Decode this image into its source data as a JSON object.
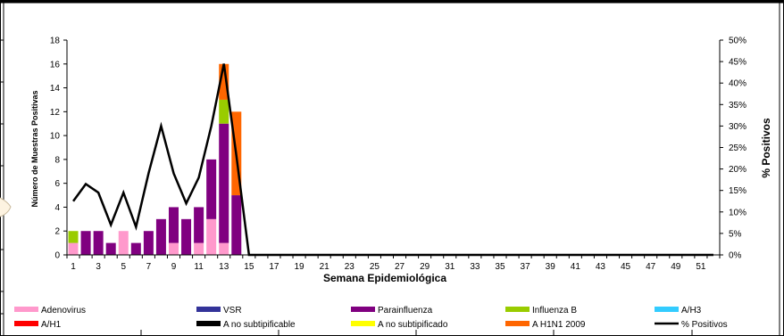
{
  "chart_data": {
    "type": "bar",
    "title": "",
    "xlabel": "Semana Epidemiológica",
    "ylabel": "Número de Muestras Positivas",
    "y2label": "% Positivos",
    "ylim": [
      0,
      18
    ],
    "y2lim": [
      0,
      0.5
    ],
    "yticks": [
      "0",
      "2",
      "4",
      "6",
      "8",
      "10",
      "12",
      "14",
      "16",
      "18"
    ],
    "y2ticks": [
      "0%",
      "5%",
      "10%",
      "15%",
      "20%",
      "25%",
      "30%",
      "35%",
      "40%",
      "45%",
      "50%"
    ],
    "x": [
      1,
      2,
      3,
      4,
      5,
      6,
      7,
      8,
      9,
      10,
      11,
      12,
      13,
      14,
      15,
      16,
      17,
      18,
      19,
      20,
      21,
      22,
      23,
      24,
      25,
      26,
      27,
      28,
      29,
      30,
      31,
      32,
      33,
      34,
      35,
      36,
      37,
      38,
      39,
      40,
      41,
      42,
      43,
      44,
      45,
      46,
      47,
      48,
      49,
      50,
      51,
      52
    ],
    "xtick_labels": [
      "1",
      "3",
      "5",
      "7",
      "9",
      "11",
      "13",
      "15",
      "17",
      "19",
      "21",
      "23",
      "25",
      "27",
      "29",
      "31",
      "33",
      "35",
      "37",
      "39",
      "41",
      "43",
      "45",
      "47",
      "49",
      "51"
    ],
    "series": [
      {
        "name": "Adenovirus",
        "color": "#ff99cc",
        "kind": "bar",
        "values": [
          1,
          0,
          0,
          0,
          2,
          0,
          0,
          0,
          1,
          0,
          1,
          3,
          1,
          0,
          0,
          0,
          0,
          0,
          0,
          0,
          0,
          0,
          0,
          0,
          0,
          0,
          0,
          0,
          0,
          0,
          0,
          0,
          0,
          0,
          0,
          0,
          0,
          0,
          0,
          0,
          0,
          0,
          0,
          0,
          0,
          0,
          0,
          0,
          0,
          0,
          0,
          0
        ]
      },
      {
        "name": "VSR",
        "color": "#333399",
        "kind": "bar",
        "values": [
          0,
          0,
          0,
          0,
          0,
          0,
          0,
          0,
          0,
          0,
          0,
          0,
          0,
          0,
          0,
          0,
          0,
          0,
          0,
          0,
          0,
          0,
          0,
          0,
          0,
          0,
          0,
          0,
          0,
          0,
          0,
          0,
          0,
          0,
          0,
          0,
          0,
          0,
          0,
          0,
          0,
          0,
          0,
          0,
          0,
          0,
          0,
          0,
          0,
          0,
          0,
          0
        ]
      },
      {
        "name": "Parainfluenza",
        "color": "#800080",
        "kind": "bar",
        "values": [
          0,
          2,
          2,
          1,
          0,
          1,
          2,
          3,
          3,
          3,
          3,
          5,
          10,
          5,
          0,
          0,
          0,
          0,
          0,
          0,
          0,
          0,
          0,
          0,
          0,
          0,
          0,
          0,
          0,
          0,
          0,
          0,
          0,
          0,
          0,
          0,
          0,
          0,
          0,
          0,
          0,
          0,
          0,
          0,
          0,
          0,
          0,
          0,
          0,
          0,
          0,
          0
        ]
      },
      {
        "name": "Influenza  B",
        "color": "#99cc00",
        "kind": "bar",
        "values": [
          1,
          0,
          0,
          0,
          0,
          0,
          0,
          0,
          0,
          0,
          0,
          0,
          2,
          0,
          0,
          0,
          0,
          0,
          0,
          0,
          0,
          0,
          0,
          0,
          0,
          0,
          0,
          0,
          0,
          0,
          0,
          0,
          0,
          0,
          0,
          0,
          0,
          0,
          0,
          0,
          0,
          0,
          0,
          0,
          0,
          0,
          0,
          0,
          0,
          0,
          0,
          0
        ]
      },
      {
        "name": "A/H3",
        "color": "#33ccff",
        "kind": "bar",
        "values": [
          0,
          0,
          0,
          0,
          0,
          0,
          0,
          0,
          0,
          0,
          0,
          0,
          0,
          0,
          0,
          0,
          0,
          0,
          0,
          0,
          0,
          0,
          0,
          0,
          0,
          0,
          0,
          0,
          0,
          0,
          0,
          0,
          0,
          0,
          0,
          0,
          0,
          0,
          0,
          0,
          0,
          0,
          0,
          0,
          0,
          0,
          0,
          0,
          0,
          0,
          0,
          0
        ]
      },
      {
        "name": "A/H1",
        "color": "#ff0000",
        "kind": "bar",
        "values": [
          0,
          0,
          0,
          0,
          0,
          0,
          0,
          0,
          0,
          0,
          0,
          0,
          0,
          0,
          0,
          0,
          0,
          0,
          0,
          0,
          0,
          0,
          0,
          0,
          0,
          0,
          0,
          0,
          0,
          0,
          0,
          0,
          0,
          0,
          0,
          0,
          0,
          0,
          0,
          0,
          0,
          0,
          0,
          0,
          0,
          0,
          0,
          0,
          0,
          0,
          0,
          0
        ]
      },
      {
        "name": "A no subtipificable",
        "color": "#000000",
        "kind": "bar",
        "values": [
          0,
          0,
          0,
          0,
          0,
          0,
          0,
          0,
          0,
          0,
          0,
          0,
          0,
          0,
          0,
          0,
          0,
          0,
          0,
          0,
          0,
          0,
          0,
          0,
          0,
          0,
          0,
          0,
          0,
          0,
          0,
          0,
          0,
          0,
          0,
          0,
          0,
          0,
          0,
          0,
          0,
          0,
          0,
          0,
          0,
          0,
          0,
          0,
          0,
          0,
          0,
          0
        ]
      },
      {
        "name": "A no subtipificado",
        "color": "#ffff00",
        "kind": "bar",
        "values": [
          0,
          0,
          0,
          0,
          0,
          0,
          0,
          0,
          0,
          0,
          0,
          0,
          0,
          0,
          0,
          0,
          0,
          0,
          0,
          0,
          0,
          0,
          0,
          0,
          0,
          0,
          0,
          0,
          0,
          0,
          0,
          0,
          0,
          0,
          0,
          0,
          0,
          0,
          0,
          0,
          0,
          0,
          0,
          0,
          0,
          0,
          0,
          0,
          0,
          0,
          0,
          0
        ]
      },
      {
        "name": "A H1N1 2009",
        "color": "#ff6600",
        "kind": "bar",
        "values": [
          0,
          0,
          0,
          0,
          0,
          0,
          0,
          0,
          0,
          0,
          0,
          0,
          3,
          7,
          0,
          0,
          0,
          0,
          0,
          0,
          0,
          0,
          0,
          0,
          0,
          0,
          0,
          0,
          0,
          0,
          0,
          0,
          0,
          0,
          0,
          0,
          0,
          0,
          0,
          0,
          0,
          0,
          0,
          0,
          0,
          0,
          0,
          0,
          0,
          0,
          0,
          0
        ]
      },
      {
        "name": "% Positivos",
        "color": "#000000",
        "kind": "line",
        "axis": "right",
        "values": [
          0.125,
          0.165,
          0.145,
          0.07,
          0.145,
          0.065,
          0.19,
          0.3,
          0.19,
          0.12,
          0.18,
          0.3,
          0.445,
          0.23,
          0.0,
          0,
          0,
          0,
          0,
          0,
          0,
          0,
          0,
          0,
          0,
          0,
          0,
          0,
          0,
          0,
          0,
          0,
          0,
          0,
          0,
          0,
          0,
          0,
          0,
          0,
          0,
          0,
          0,
          0,
          0,
          0,
          0,
          0,
          0,
          0,
          0,
          0
        ]
      }
    ],
    "grid": false,
    "legend_position": "bottom"
  }
}
